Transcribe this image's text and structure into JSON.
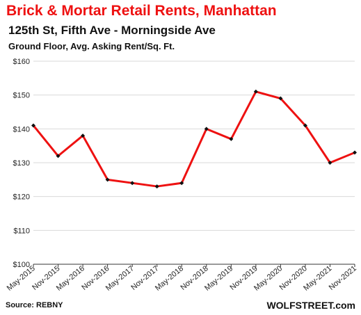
{
  "header": {
    "title": "Brick & Mortar Retail Rents, Manhattan",
    "subtitle": "125th St, Fifth Ave - Morningside Ave",
    "subtitle2": "Ground Floor, Avg. Asking Rent/Sq. Ft."
  },
  "footer": {
    "source": "Source: REBNY",
    "brand": "WOLFSTREET.com"
  },
  "colors": {
    "line": "#ee1111",
    "marker": "#111111",
    "grid": "#d9d9d9",
    "title": "#ee1111"
  },
  "chart_data": {
    "type": "line",
    "title": "Brick & Mortar Retail Rents, Manhattan",
    "subtitle": "125th St, Fifth Ave - Morningside Ave",
    "ylabel": "Ground Floor, Avg. Asking Rent/Sq. Ft.",
    "categories": [
      "May-2015",
      "Nov-2015",
      "May-2016",
      "Nov-2016",
      "May-2017",
      "Nov-2017",
      "May-2018",
      "Nov-2018",
      "May-2019",
      "Nov-2019",
      "May-2020",
      "Nov-2020",
      "May-2021",
      "Nov-2021"
    ],
    "series": [
      {
        "values": [
          141,
          132,
          138,
          125,
          124,
          123,
          124,
          140,
          137,
          151,
          149,
          141,
          130,
          133
        ]
      }
    ],
    "ylim": [
      100,
      160
    ],
    "yticks": [
      100,
      110,
      120,
      130,
      140,
      150,
      160
    ],
    "ytick_labels": [
      "$100",
      "$110",
      "$120",
      "$130",
      "$140",
      "$150",
      "$160"
    ],
    "grid": true,
    "legend": "none"
  }
}
